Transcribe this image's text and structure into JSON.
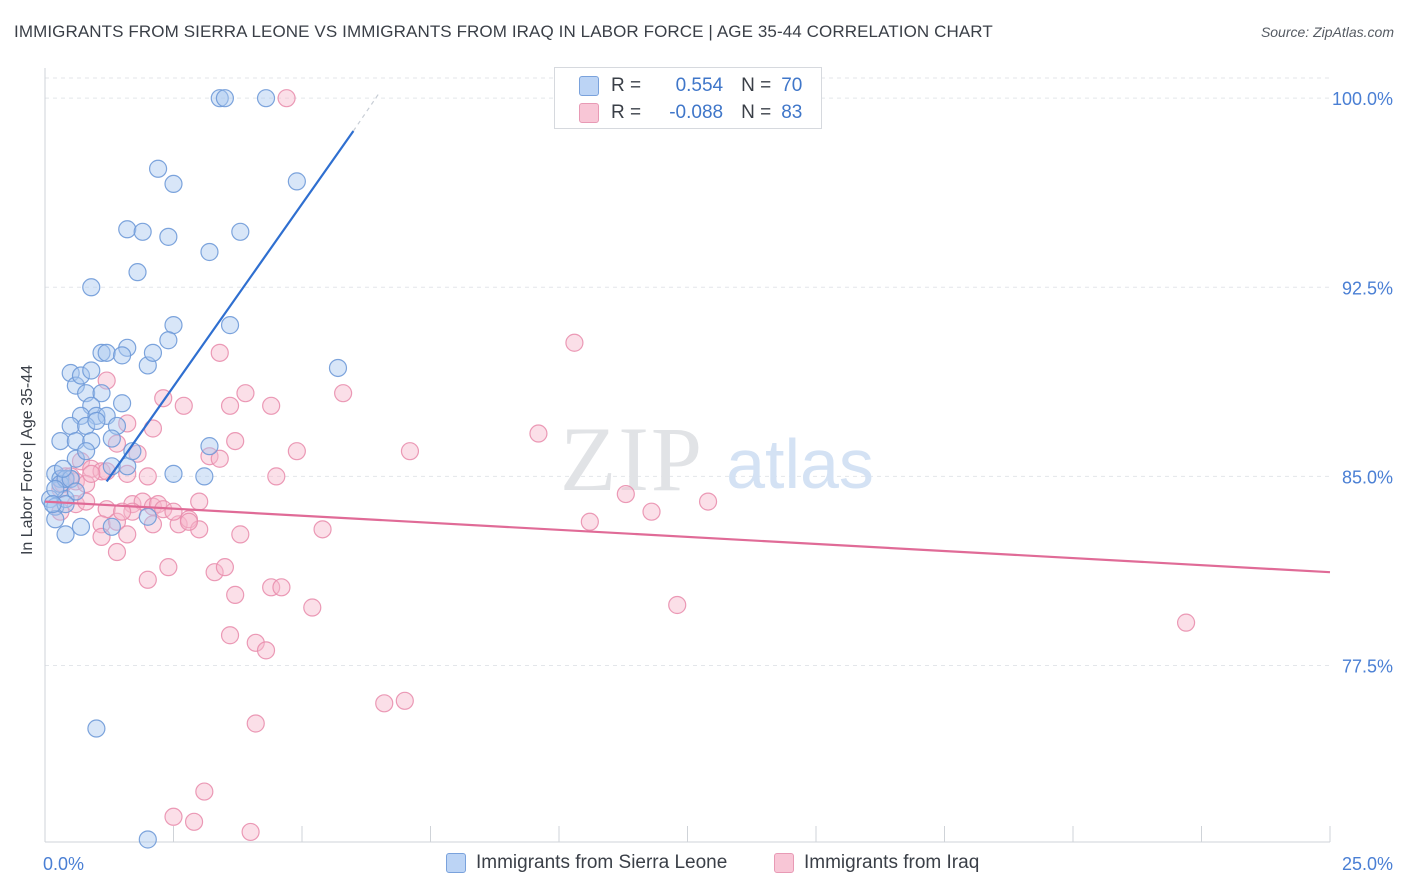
{
  "title": "IMMIGRANTS FROM SIERRA LEONE VS IMMIGRANTS FROM IRAQ IN LABOR FORCE | AGE 35-44 CORRELATION CHART",
  "source": "Source: ZipAtlas.com",
  "watermark": {
    "zip": "ZIP",
    "atlas": "atlas"
  },
  "colors": {
    "blue_fill": "#a9c8f0",
    "blue_stroke": "#6f9ad8",
    "blue_line": "#2f6fd0",
    "pink_fill": "#f6b8cc",
    "pink_stroke": "#e98fae",
    "pink_line": "#e06b97",
    "axis_label": "#4a7fd4",
    "grid": "#e3e6ea"
  },
  "stats": {
    "rows": [
      {
        "r_label": "R =",
        "r_value": "0.554",
        "n_label": "N =",
        "n_value": "70",
        "series": "blue"
      },
      {
        "r_label": "R =",
        "r_value": "-0.088",
        "n_label": "N =",
        "n_value": "83",
        "series": "pink"
      }
    ]
  },
  "legend": {
    "items": [
      {
        "label": "Immigrants from Sierra Leone",
        "series": "blue"
      },
      {
        "label": "Immigrants from Iraq",
        "series": "pink"
      }
    ]
  },
  "chart_data": {
    "type": "scatter",
    "title": "IMMIGRANTS FROM SIERRA LEONE VS IMMIGRANTS FROM IRAQ IN LABOR FORCE | AGE 35-44 CORRELATION CHART",
    "xlabel": "",
    "ylabel": "In Labor Force | Age 35-44",
    "xlim": [
      0,
      25
    ],
    "ylim": [
      70.5,
      100.8
    ],
    "x_tick_labels": [
      "0.0%",
      "25.0%"
    ],
    "y_ticks": [
      77.5,
      85.0,
      92.5,
      100.0
    ],
    "y_tick_labels": [
      "77.5%",
      "85.0%",
      "92.5%",
      "100.0%"
    ],
    "grid": true,
    "series": [
      {
        "name": "Immigrants from Sierra Leone",
        "color": "blue",
        "r": 0.554,
        "n": 70,
        "trend": {
          "x0": 1.2,
          "y0": 84.8,
          "x1": 6.0,
          "y1": 98.7,
          "dash_to_x": 6.5,
          "dash_to_y": 100.2
        },
        "points": [
          [
            3.4,
            100.0
          ],
          [
            3.5,
            100.0
          ],
          [
            4.3,
            100.0
          ],
          [
            2.2,
            97.2
          ],
          [
            2.5,
            96.6
          ],
          [
            4.9,
            96.7
          ],
          [
            1.6,
            94.8
          ],
          [
            1.9,
            94.7
          ],
          [
            2.4,
            94.5
          ],
          [
            3.2,
            93.9
          ],
          [
            3.8,
            94.7
          ],
          [
            0.9,
            92.5
          ],
          [
            1.8,
            93.1
          ],
          [
            2.5,
            91.0
          ],
          [
            3.6,
            91.0
          ],
          [
            1.1,
            89.9
          ],
          [
            1.2,
            89.9
          ],
          [
            1.6,
            90.1
          ],
          [
            1.5,
            89.8
          ],
          [
            2.0,
            89.4
          ],
          [
            2.1,
            89.9
          ],
          [
            2.4,
            90.4
          ],
          [
            0.5,
            89.1
          ],
          [
            0.6,
            88.6
          ],
          [
            0.7,
            89.0
          ],
          [
            0.9,
            89.2
          ],
          [
            0.8,
            88.3
          ],
          [
            1.1,
            88.3
          ],
          [
            0.9,
            87.8
          ],
          [
            1.5,
            87.9
          ],
          [
            0.7,
            87.4
          ],
          [
            1.0,
            87.4
          ],
          [
            1.2,
            87.4
          ],
          [
            0.5,
            87.0
          ],
          [
            0.8,
            87.0
          ],
          [
            1.0,
            87.2
          ],
          [
            1.4,
            87.0
          ],
          [
            0.3,
            86.4
          ],
          [
            0.6,
            86.4
          ],
          [
            0.9,
            86.4
          ],
          [
            1.3,
            86.5
          ],
          [
            0.6,
            85.7
          ],
          [
            1.3,
            85.4
          ],
          [
            1.6,
            85.4
          ],
          [
            3.2,
            86.2
          ],
          [
            0.2,
            85.1
          ],
          [
            0.3,
            84.9
          ],
          [
            0.3,
            84.7
          ],
          [
            0.4,
            84.9
          ],
          [
            0.5,
            84.9
          ],
          [
            0.1,
            84.1
          ],
          [
            0.2,
            83.8
          ],
          [
            0.4,
            84.1
          ],
          [
            0.6,
            84.4
          ],
          [
            0.4,
            83.9
          ],
          [
            0.2,
            83.3
          ],
          [
            0.4,
            82.7
          ],
          [
            0.7,
            83.0
          ],
          [
            1.3,
            83.0
          ],
          [
            2.0,
            83.4
          ],
          [
            2.5,
            85.1
          ],
          [
            5.7,
            89.3
          ],
          [
            3.1,
            85.0
          ],
          [
            1.0,
            75.0
          ],
          [
            2.0,
            70.6
          ],
          [
            0.2,
            84.5
          ],
          [
            0.15,
            83.9
          ],
          [
            0.35,
            85.3
          ],
          [
            1.7,
            86.0
          ],
          [
            0.8,
            86.0
          ]
        ]
      },
      {
        "name": "Immigrants from Iraq",
        "color": "pink",
        "r": -0.088,
        "n": 83,
        "trend": {
          "x0": 0.0,
          "y0": 84.0,
          "x1": 25.0,
          "y1": 81.2
        },
        "points": [
          [
            4.7,
            100.0
          ],
          [
            10.3,
            90.3
          ],
          [
            3.4,
            89.9
          ],
          [
            1.2,
            88.8
          ],
          [
            2.3,
            88.1
          ],
          [
            2.7,
            87.8
          ],
          [
            3.6,
            87.8
          ],
          [
            3.9,
            88.3
          ],
          [
            4.4,
            87.8
          ],
          [
            5.8,
            88.3
          ],
          [
            1.6,
            87.1
          ],
          [
            2.1,
            86.9
          ],
          [
            3.7,
            86.4
          ],
          [
            9.6,
            86.7
          ],
          [
            7.1,
            86.0
          ],
          [
            1.4,
            86.3
          ],
          [
            1.8,
            85.9
          ],
          [
            3.2,
            85.8
          ],
          [
            3.4,
            85.7
          ],
          [
            4.9,
            86.0
          ],
          [
            0.7,
            85.6
          ],
          [
            0.9,
            85.3
          ],
          [
            1.1,
            85.2
          ],
          [
            1.2,
            85.2
          ],
          [
            1.6,
            85.1
          ],
          [
            2.0,
            85.0
          ],
          [
            4.5,
            85.0
          ],
          [
            0.4,
            85.0
          ],
          [
            0.6,
            84.8
          ],
          [
            0.8,
            84.7
          ],
          [
            0.3,
            84.5
          ],
          [
            11.3,
            84.3
          ],
          [
            0.6,
            83.9
          ],
          [
            0.8,
            84.0
          ],
          [
            1.2,
            83.7
          ],
          [
            1.7,
            83.9
          ],
          [
            1.9,
            84.0
          ],
          [
            2.1,
            83.8
          ],
          [
            2.2,
            83.9
          ],
          [
            2.3,
            83.7
          ],
          [
            3.0,
            84.0
          ],
          [
            11.8,
            83.6
          ],
          [
            12.9,
            84.0
          ],
          [
            1.1,
            83.1
          ],
          [
            1.4,
            83.2
          ],
          [
            1.7,
            83.6
          ],
          [
            2.1,
            83.1
          ],
          [
            2.6,
            83.1
          ],
          [
            2.8,
            83.3
          ],
          [
            3.0,
            82.9
          ],
          [
            3.8,
            82.7
          ],
          [
            5.4,
            82.9
          ],
          [
            10.6,
            83.2
          ],
          [
            1.1,
            82.6
          ],
          [
            1.6,
            82.7
          ],
          [
            1.4,
            82.0
          ],
          [
            2.4,
            81.4
          ],
          [
            3.3,
            81.2
          ],
          [
            3.5,
            81.4
          ],
          [
            2.0,
            80.9
          ],
          [
            3.7,
            80.3
          ],
          [
            4.4,
            80.6
          ],
          [
            4.6,
            80.6
          ],
          [
            5.2,
            79.8
          ],
          [
            12.3,
            79.9
          ],
          [
            22.2,
            79.2
          ],
          [
            3.6,
            78.7
          ],
          [
            4.1,
            78.4
          ],
          [
            4.3,
            78.1
          ],
          [
            6.6,
            76.0
          ],
          [
            7.0,
            76.1
          ],
          [
            4.1,
            75.2
          ],
          [
            3.1,
            72.5
          ],
          [
            2.5,
            71.5
          ],
          [
            2.9,
            71.3
          ],
          [
            4.0,
            70.9
          ],
          [
            0.35,
            84.7
          ],
          [
            0.5,
            85.0
          ],
          [
            0.3,
            83.6
          ],
          [
            0.9,
            85.1
          ],
          [
            2.8,
            83.2
          ],
          [
            1.5,
            83.6
          ],
          [
            2.5,
            83.6
          ]
        ]
      }
    ]
  }
}
